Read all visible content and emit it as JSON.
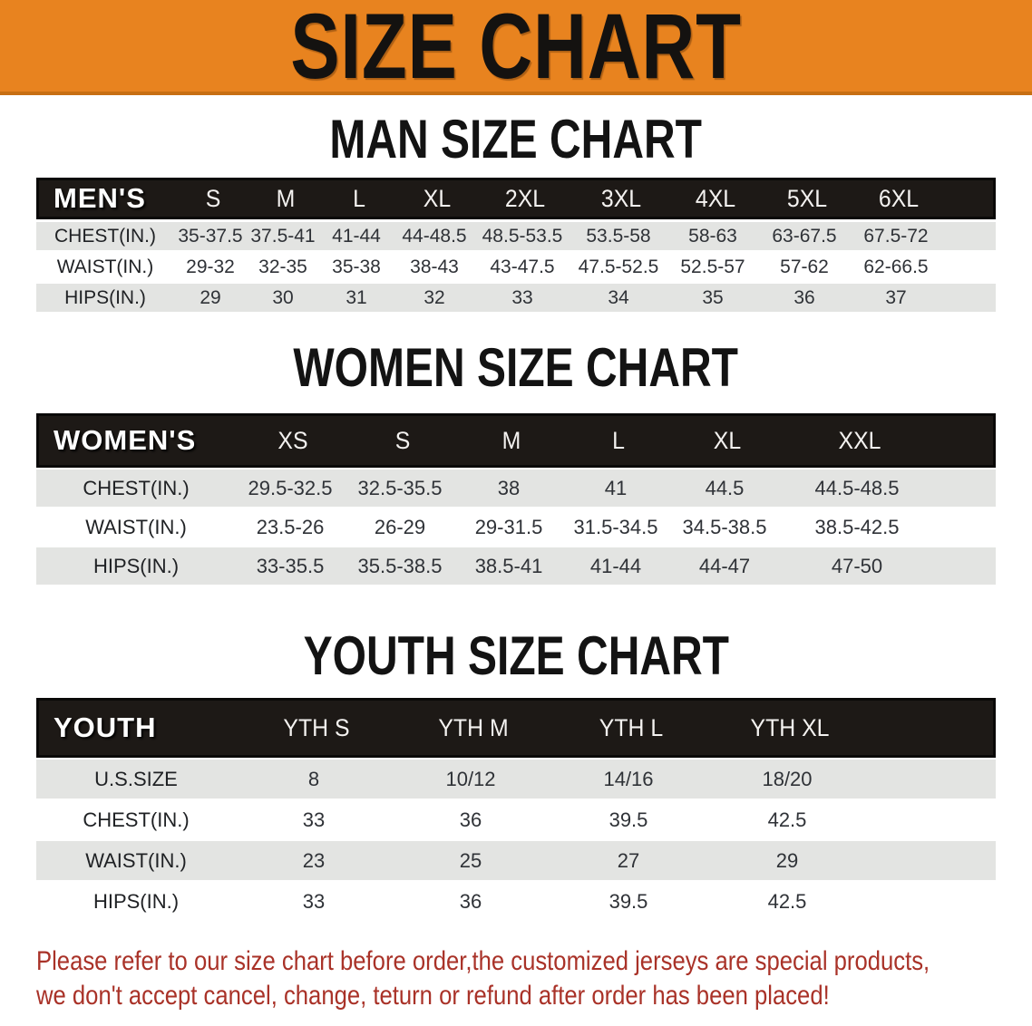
{
  "banner": {
    "title": "SIZE CHART",
    "bg_color": "#E8831F",
    "border_color": "#C76F13"
  },
  "colors": {
    "header_bar": "#1D1916",
    "row_shaded": "#E3E4E2",
    "body_text": "#2F3237",
    "footer_text": "#A93228"
  },
  "sections": [
    {
      "heading": "MAN SIZE CHART",
      "table": {
        "group_label": "MEN'S",
        "sizes": [
          "S",
          "M",
          "L",
          "XL",
          "2XL",
          "3XL",
          "4XL",
          "5XL",
          "6XL"
        ],
        "rows": [
          {
            "label": "CHEST(IN.)",
            "values": [
              "35-37.5",
              "37.5-41",
              "41-44",
              "44-48.5",
              "48.5-53.5",
              "53.5-58",
              "58-63",
              "63-67.5",
              "67.5-72"
            ]
          },
          {
            "label": "WAIST(IN.)",
            "values": [
              "29-32",
              "32-35",
              "35-38",
              "38-43",
              "43-47.5",
              "47.5-52.5",
              "52.5-57",
              "57-62",
              "62-66.5"
            ]
          },
          {
            "label": "HIPS(IN.)",
            "values": [
              "29",
              "30",
              "31",
              "32",
              "33",
              "34",
              "35",
              "36",
              "37"
            ]
          }
        ]
      }
    },
    {
      "heading": "WOMEN SIZE CHART",
      "table": {
        "group_label": "WOMEN'S",
        "sizes": [
          "XS",
          "S",
          "M",
          "L",
          "XL",
          "XXL"
        ],
        "rows": [
          {
            "label": "CHEST(IN.)",
            "values": [
              "29.5-32.5",
              "32.5-35.5",
              "38",
              "41",
              "44.5",
              "44.5-48.5"
            ]
          },
          {
            "label": "WAIST(IN.)",
            "values": [
              "23.5-26",
              "26-29",
              "29-31.5",
              "31.5-34.5",
              "34.5-38.5",
              "38.5-42.5"
            ]
          },
          {
            "label": "HIPS(IN.)",
            "values": [
              "33-35.5",
              "35.5-38.5",
              "38.5-41",
              "41-44",
              "44-47",
              "47-50"
            ]
          }
        ]
      }
    },
    {
      "heading": "YOUTH SIZE CHART",
      "table": {
        "group_label": "YOUTH",
        "sizes": [
          "YTH S",
          "YTH M",
          "YTH L",
          "YTH XL"
        ],
        "rows": [
          {
            "label": "U.S.SIZE",
            "values": [
              "8",
              "10/12",
              "14/16",
              "18/20"
            ]
          },
          {
            "label": "CHEST(IN.)",
            "values": [
              "33",
              "36",
              "39.5",
              "42.5"
            ]
          },
          {
            "label": "WAIST(IN.)",
            "values": [
              "23",
              "25",
              "27",
              "29"
            ]
          },
          {
            "label": "HIPS(IN.)",
            "values": [
              "33",
              "36",
              "39.5",
              "42.5"
            ]
          }
        ]
      }
    }
  ],
  "footer": {
    "line1": "Please refer to our size chart before order,the customized jerseys are special products,",
    "line2": "we don't accept cancel, change, teturn or refund after order has been placed!"
  }
}
